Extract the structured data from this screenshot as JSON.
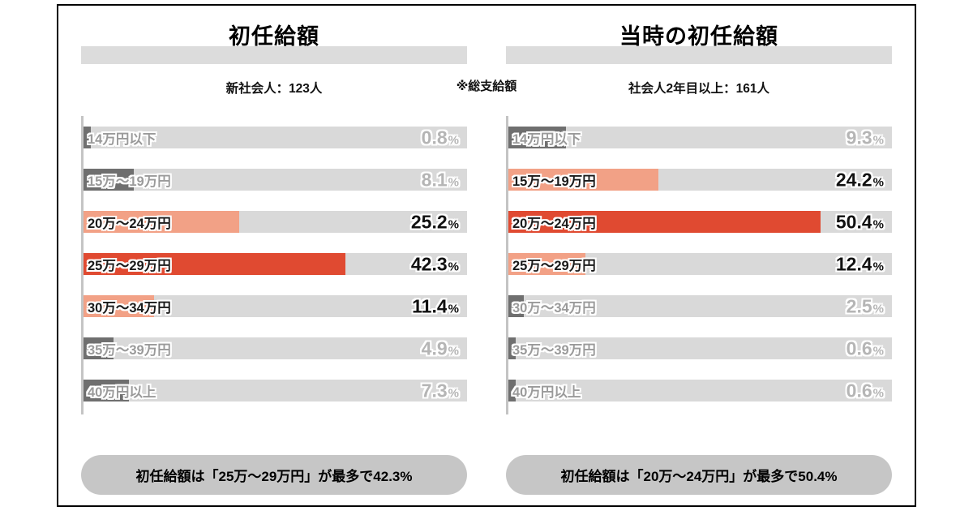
{
  "note": "※総支給額",
  "percent_suffix": "%",
  "palette": {
    "track": "#d9d9d9",
    "bar_gray": "#6f6f6f",
    "bar_salmon": "#f2a186",
    "bar_red": "#e04a31",
    "callout_bg": "#c6c6c6",
    "title_strip": "#dcdcdc",
    "muted_text": "#b5b5b5",
    "strong_text": "#111111"
  },
  "chart_data": [
    {
      "type": "bar",
      "orientation": "horizontal",
      "title": "初任給額",
      "subtitle": "新社会人：123人",
      "categories": [
        "14万円以下",
        "15万～19万円",
        "20万～24万円",
        "25万～29万円",
        "30万～34万円",
        "35万～39万円",
        "40万円以上"
      ],
      "values": [
        0.8,
        8.1,
        25.2,
        42.3,
        11.4,
        4.9,
        7.3
      ],
      "bar_colors": [
        "gray",
        "gray",
        "salmon",
        "red",
        "salmon",
        "gray",
        "gray"
      ],
      "unit": "%",
      "xlim": [
        0,
        62
      ],
      "grid": false,
      "legend": "none",
      "annotation": "初任給額は「25万～29万円」が最多で42.3%"
    },
    {
      "type": "bar",
      "orientation": "horizontal",
      "title": "当時の初任給額",
      "subtitle": "社会人2年目以上：161人",
      "categories": [
        "14万円以下",
        "15万～19万円",
        "20万～24万円",
        "25万～29万円",
        "30万～34万円",
        "35万～39万円",
        "40万円以上"
      ],
      "values": [
        9.3,
        24.2,
        50.4,
        12.4,
        2.5,
        0.6,
        0.6
      ],
      "bar_colors": [
        "gray",
        "salmon",
        "red",
        "salmon",
        "gray",
        "gray",
        "gray"
      ],
      "unit": "%",
      "xlim": [
        0,
        62
      ],
      "grid": false,
      "legend": "none",
      "annotation": "初任給額は「20万～24万円」が最多で50.4%"
    }
  ]
}
